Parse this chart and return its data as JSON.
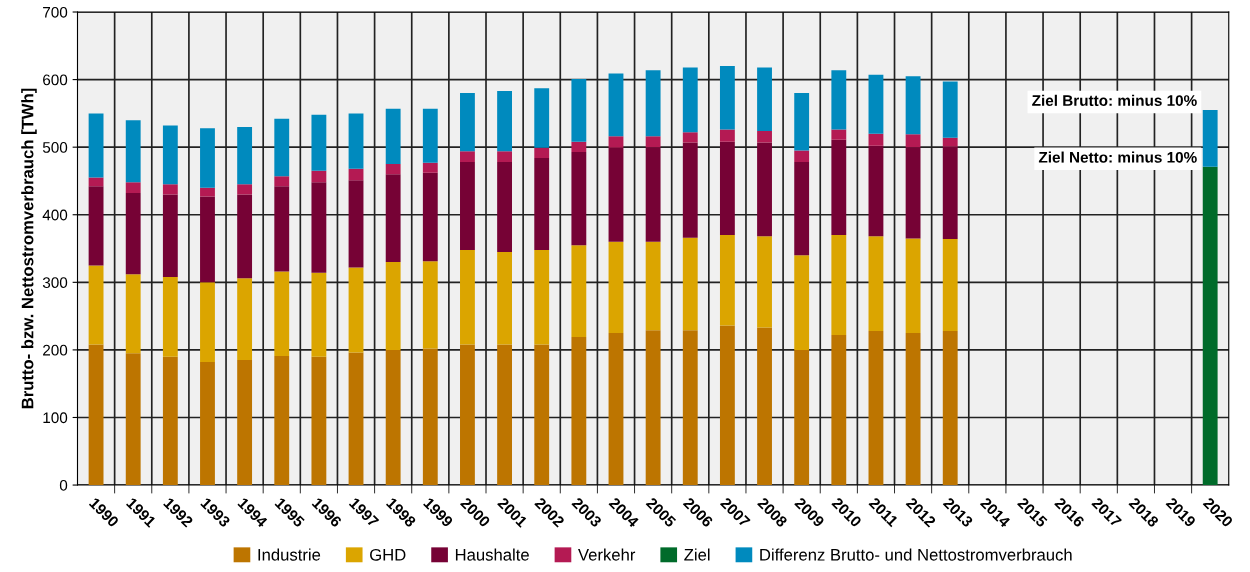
{
  "chart_data": {
    "type": "bar",
    "stacked": true,
    "ylabel": "Brutto- bzw. Nettostromverbrauch [TWh]",
    "categories": [
      "1990",
      "1991",
      "1992",
      "1993",
      "1994",
      "1995",
      "1996",
      "1997",
      "1998",
      "1999",
      "2000",
      "2001",
      "2002",
      "2003",
      "2004",
      "2005",
      "2006",
      "2007",
      "2008",
      "2009",
      "2010",
      "2011",
      "2012",
      "2013",
      "2014",
      "2015",
      "2016",
      "2017",
      "2018",
      "2019",
      "2020"
    ],
    "series": [
      {
        "name": "Industrie",
        "color": "#bd7500",
        "values": [
          208,
          195,
          190,
          182,
          185,
          191,
          190,
          196,
          200,
          202,
          208,
          208,
          208,
          219,
          225,
          229,
          229,
          236,
          233,
          200,
          222,
          228,
          225,
          228,
          null,
          null,
          null,
          null,
          null,
          null,
          null
        ]
      },
      {
        "name": "GHD",
        "color": "#dba500",
        "values": [
          117,
          117,
          118,
          118,
          121,
          125,
          124,
          126,
          130,
          129,
          140,
          137,
          140,
          136,
          135,
          131,
          137,
          134,
          135,
          140,
          148,
          140,
          140,
          136,
          null,
          null,
          null,
          null,
          null,
          null,
          null
        ]
      },
      {
        "name": "Haushalte",
        "color": "#760235",
        "values": [
          117,
          120,
          122,
          127,
          124,
          126,
          134,
          129,
          130,
          131,
          130,
          133,
          136,
          138,
          139,
          140,
          141,
          138,
          139,
          138,
          141,
          134,
          135,
          137,
          null,
          null,
          null,
          null,
          null,
          null,
          null
        ]
      },
      {
        "name": "Verkehr",
        "color": "#b41a53",
        "values": [
          13,
          16,
          15,
          13,
          15,
          15,
          17,
          17,
          15,
          15,
          16,
          16,
          15,
          15,
          17,
          16,
          15,
          18,
          17,
          17,
          15,
          18,
          19,
          13,
          null,
          null,
          null,
          null,
          null,
          null,
          null
        ]
      },
      {
        "name": "Ziel",
        "color": "#006b2a",
        "values": [
          null,
          null,
          null,
          null,
          null,
          null,
          null,
          null,
          null,
          null,
          null,
          null,
          null,
          null,
          null,
          null,
          null,
          null,
          null,
          null,
          null,
          null,
          null,
          null,
          null,
          null,
          null,
          null,
          null,
          null,
          471
        ]
      },
      {
        "name": "Differenz Brutto- und Nettostromverbrauch",
        "color": "#008abe",
        "values": [
          95,
          92,
          87,
          88,
          85,
          85,
          83,
          82,
          82,
          80,
          86,
          89,
          88,
          93,
          93,
          98,
          96,
          94,
          94,
          85,
          88,
          87,
          86,
          83,
          null,
          null,
          null,
          null,
          null,
          null,
          84
        ]
      }
    ],
    "ylim": [
      0,
      700
    ],
    "yticks": [
      0,
      100,
      200,
      300,
      400,
      500,
      600,
      700
    ],
    "grid": true,
    "legend": "bottom",
    "annotations": [
      {
        "text": "Ziel Brutto: minus 10%",
        "x": "2020",
        "y": 555
      },
      {
        "text": "Ziel Netto: minus 10%",
        "x": "2020",
        "y": 471
      }
    ]
  }
}
